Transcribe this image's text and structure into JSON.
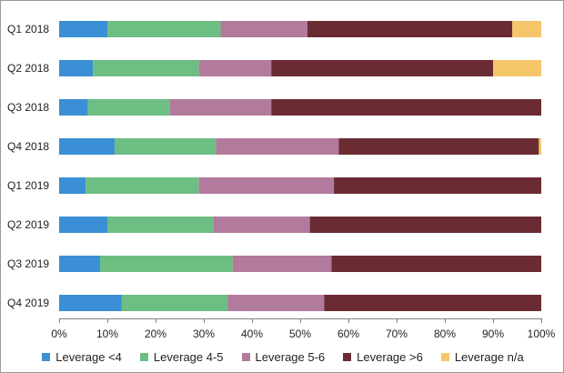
{
  "chart_data": {
    "type": "bar",
    "orientation": "horizontal",
    "stacked": "percent",
    "title": "",
    "xlabel": "",
    "ylabel": "",
    "xlim": [
      0,
      100
    ],
    "x_ticks": [
      "0%",
      "10%",
      "20%",
      "30%",
      "40%",
      "50%",
      "60%",
      "70%",
      "80%",
      "90%",
      "100%"
    ],
    "grid": false,
    "legend_position": "bottom",
    "categories": [
      "Q1 2018",
      "Q2 2018",
      "Q3 2018",
      "Q4 2018",
      "Q1 2019",
      "Q2 2019",
      "Q3 2019",
      "Q4 2019"
    ],
    "series": [
      {
        "name": "Leverage <4",
        "color": "#3a8fd6",
        "values": [
          10,
          7,
          6,
          11.5,
          5.5,
          10,
          8.5,
          13
        ]
      },
      {
        "name": "Leverage 4-5",
        "color": "#6dbe83",
        "values": [
          23.5,
          22,
          17,
          21,
          23.5,
          22,
          27.5,
          22
        ]
      },
      {
        "name": "Leverage 5-6",
        "color": "#b27a9c",
        "values": [
          18,
          15,
          21,
          25.5,
          28,
          20,
          20.5,
          20
        ]
      },
      {
        "name": "Leverage >6",
        "color": "#6b2b33",
        "values": [
          42.5,
          46,
          56,
          41.5,
          43,
          48,
          43.5,
          45
        ]
      },
      {
        "name": "Leverage n/a",
        "color": "#f5c56a",
        "values": [
          6,
          10,
          0,
          0.5,
          0,
          0,
          0,
          0
        ]
      }
    ]
  }
}
